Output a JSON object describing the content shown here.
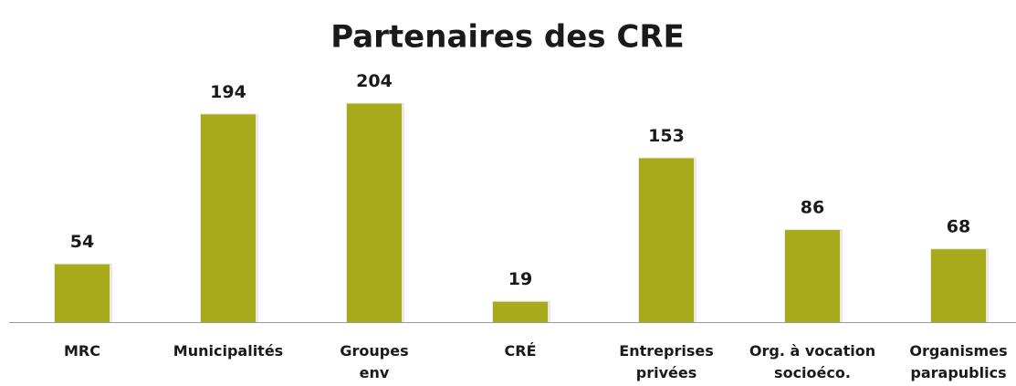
{
  "chart_data": {
    "type": "bar",
    "title": "Partenaires des CRE",
    "categories": [
      "MRC",
      "Municipalités",
      "Groupes\nenv",
      "CRÉ",
      "Entreprises\nprivées",
      "Org. à vocation\nsocioéco.",
      "Organismes\nparapublics"
    ],
    "values": [
      54,
      194,
      204,
      19,
      153,
      86,
      68
    ],
    "color": "#a8aa1c"
  }
}
